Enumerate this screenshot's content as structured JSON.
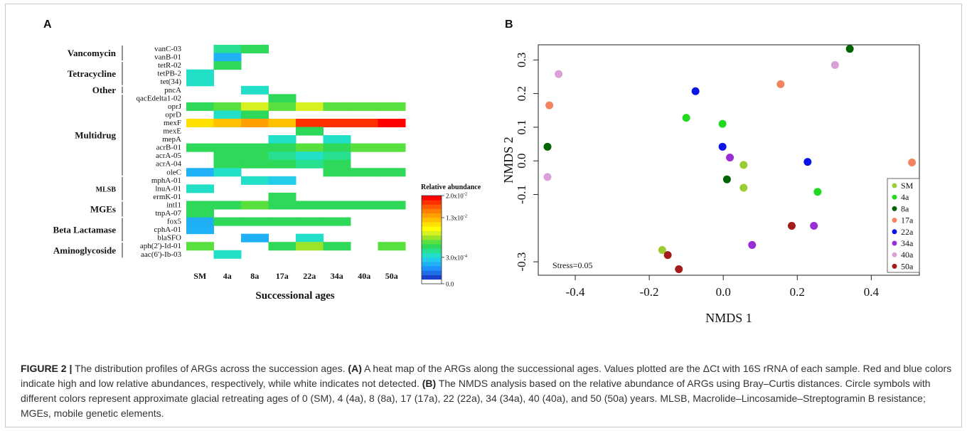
{
  "panel_a_letter": "A",
  "panel_b_letter": "B",
  "caption": {
    "figure_label": "FIGURE 2 |",
    "intro": " The distribution profiles of ARGs across the succession ages. ",
    "a_tag": "(A)",
    "a_text": " A heat map of the ARGs along the successional ages. Values plotted are the ΔCt with 16S rRNA of each sample. Red and blue colors indicate high and low relative abundances, respectively, while white indicates not detected. ",
    "b_tag": "(B)",
    "b_text": " The NMDS analysis based on the relative abundance of ARGs using Bray–Curtis distances. Circle symbols with different colors represent approximate glacial retreating ages of 0 (SM), 4 (4a), 8 (8a), 17 (17a), 22 (22a), 34 (34a), 40 (40a), and 50 (50a) years. MLSB, Macrolide–Lincosamide–Streptogramin B resistance; MGEs, mobile genetic elements."
  },
  "chart_data": [
    {
      "type": "heatmap",
      "panel": "A",
      "xlabel": "Successional ages",
      "columns": [
        "SM",
        "4a",
        "8a",
        "17a",
        "22a",
        "34a",
        "40a",
        "50a"
      ],
      "rows": [
        "vanC-03",
        "vanB-01",
        "tetR-02",
        "tetPB-2",
        "tet(34)",
        "pncA",
        "qacEdelta1-02",
        "oprJ",
        "oprD",
        "mexF",
        "mexE",
        "mepA",
        "acrB-01",
        "acrA-05",
        "acrA-04",
        "oleC",
        "mphA-01",
        "lnuA-01",
        "ermK-01",
        "intI1",
        "tnpA-07",
        "fox5",
        "cphA-01",
        "blaSFO",
        "aph(2')-Id-01",
        "aac(6')-Ib-03"
      ],
      "groups": [
        {
          "label": "Vancomycin",
          "start": 0,
          "end": 1
        },
        {
          "label": "Tetracycline",
          "start": 2,
          "end": 4
        },
        {
          "label": "Other",
          "start": 5,
          "end": 5
        },
        {
          "label": "Multidrug",
          "start": 6,
          "end": 15
        },
        {
          "label": "MLSB",
          "start": 16,
          "end": 18
        },
        {
          "label": "MGEs",
          "start": 19,
          "end": 20
        },
        {
          "label": "Beta Lactamase",
          "start": 21,
          "end": 23
        },
        {
          "label": "Aminoglycoside",
          "start": 24,
          "end": 25
        }
      ],
      "values": [
        [
          null,
          0.32,
          0.4,
          null,
          null,
          null,
          null,
          null
        ],
        [
          null,
          0.17,
          null,
          null,
          null,
          null,
          null,
          null
        ],
        [
          null,
          0.37,
          null,
          null,
          null,
          null,
          null,
          null
        ],
        [
          0.31,
          null,
          null,
          null,
          null,
          null,
          null,
          null
        ],
        [
          0.31,
          null,
          null,
          null,
          null,
          null,
          null,
          null
        ],
        [
          null,
          null,
          0.31,
          null,
          null,
          null,
          null,
          null
        ],
        [
          null,
          null,
          null,
          0.37,
          null,
          null,
          null,
          null
        ],
        [
          0.42,
          0.47,
          0.54,
          0.47,
          0.55,
          0.47,
          0.45,
          0.45
        ],
        [
          null,
          0.31,
          0.4,
          null,
          null,
          null,
          null,
          null
        ],
        [
          0.64,
          0.72,
          0.78,
          0.73,
          0.9,
          0.9,
          0.9,
          0.98
        ],
        [
          null,
          null,
          null,
          null,
          0.37,
          null,
          null,
          null
        ],
        [
          null,
          null,
          null,
          0.31,
          null,
          0.31,
          null,
          null
        ],
        [
          0.42,
          0.4,
          0.42,
          0.42,
          0.45,
          0.42,
          0.44,
          0.47
        ],
        [
          null,
          0.37,
          0.37,
          0.33,
          0.3,
          0.34,
          null,
          null
        ],
        [
          null,
          0.37,
          0.37,
          0.37,
          0.33,
          0.37,
          null,
          null
        ],
        [
          0.2,
          0.31,
          null,
          null,
          null,
          0.4,
          0.37,
          0.37
        ],
        [
          null,
          null,
          0.31,
          0.22,
          null,
          null,
          null,
          null
        ],
        [
          0.31,
          null,
          null,
          null,
          null,
          null,
          null,
          null
        ],
        [
          null,
          null,
          null,
          0.4,
          null,
          null,
          null,
          null
        ],
        [
          0.42,
          0.42,
          0.44,
          0.42,
          0.42,
          0.42,
          0.42,
          0.42
        ],
        [
          0.37,
          null,
          null,
          null,
          null,
          null,
          null,
          null
        ],
        [
          0.2,
          0.37,
          0.4,
          0.37,
          0.37,
          0.4,
          null,
          null
        ],
        [
          0.2,
          null,
          null,
          null,
          null,
          null,
          null,
          null
        ],
        [
          null,
          null,
          0.2,
          null,
          0.31,
          null,
          null,
          null
        ],
        [
          0.44,
          null,
          null,
          0.4,
          0.5,
          0.4,
          null,
          0.47
        ],
        [
          null,
          0.31,
          null,
          null,
          null,
          null,
          null,
          null
        ]
      ],
      "legend": {
        "title": "Relative abundance",
        "tick_labels": [
          "2.0x10",
          "1.3x10",
          "3.0x10",
          "0.0"
        ],
        "tick_exponents": [
          "-2",
          "-2",
          "-4",
          ""
        ],
        "tick_fractions": [
          1.0,
          0.75,
          0.3,
          0.0
        ],
        "colors": [
          "#ffffff",
          "#1a3fcc",
          "#1e6fe6",
          "#1e90ff",
          "#1fb0f5",
          "#22cdea",
          "#22dfc8",
          "#26e08f",
          "#2ed858",
          "#58e03e",
          "#9ae52a",
          "#d6f020",
          "#ffff00",
          "#ffe000",
          "#ffc000",
          "#ffa000",
          "#ff7e00",
          "#ff5a00",
          "#ff3000",
          "#ff0000"
        ]
      }
    },
    {
      "type": "scatter",
      "panel": "B",
      "xlabel": "NMDS 1",
      "ylabel": "NMDS 2",
      "xlim": [
        -0.5,
        0.53
      ],
      "ylim": [
        -0.34,
        0.345
      ],
      "xticks": [
        -0.4,
        -0.2,
        0.0,
        0.2,
        0.4
      ],
      "xtick_labels": [
        "-0.4",
        "-0.2",
        "0.0",
        "0.2",
        "0.4"
      ],
      "yticks": [
        0.3,
        0.2,
        0.1,
        0.0,
        -0.1,
        -0.3
      ],
      "ytick_labels": [
        "0.3",
        "0.2",
        "0.1",
        "0.0",
        "-0.1",
        "-0.3"
      ],
      "annotation": "Stress=0.05",
      "legend_position": "bottom-right",
      "series": [
        {
          "name": "SM",
          "color": "#9acd32",
          "points": [
            [
              -0.165,
              -0.265
            ],
            [
              0.055,
              -0.012
            ],
            [
              0.055,
              -0.08
            ]
          ]
        },
        {
          "name": "4a",
          "color": "#22d922",
          "points": [
            [
              -0.1,
              0.128
            ],
            [
              -0.002,
              0.11
            ],
            [
              0.255,
              -0.092
            ]
          ]
        },
        {
          "name": "8a",
          "color": "#006400",
          "points": [
            [
              0.342,
              0.333
            ],
            [
              -0.475,
              0.042
            ],
            [
              0.01,
              -0.055
            ]
          ]
        },
        {
          "name": "17a",
          "color": "#f4845f",
          "points": [
            [
              -0.47,
              0.165
            ],
            [
              0.155,
              0.228
            ],
            [
              0.51,
              -0.005
            ]
          ]
        },
        {
          "name": "22a",
          "color": "#0a14e6",
          "points": [
            [
              -0.075,
              0.207
            ],
            [
              -0.002,
              0.042
            ],
            [
              0.228,
              -0.003
            ]
          ]
        },
        {
          "name": "34a",
          "color": "#9a2ed6",
          "points": [
            [
              0.018,
              0.01
            ],
            [
              0.245,
              -0.193
            ],
            [
              0.078,
              -0.25
            ]
          ]
        },
        {
          "name": "40a",
          "color": "#d9a0d9",
          "points": [
            [
              -0.445,
              0.258
            ],
            [
              0.302,
              0.285
            ],
            [
              -0.475,
              -0.048
            ]
          ]
        },
        {
          "name": "50a",
          "color": "#a31b1b",
          "points": [
            [
              -0.15,
              -0.28
            ],
            [
              -0.12,
              -0.322
            ],
            [
              0.185,
              -0.193
            ]
          ]
        }
      ]
    }
  ]
}
